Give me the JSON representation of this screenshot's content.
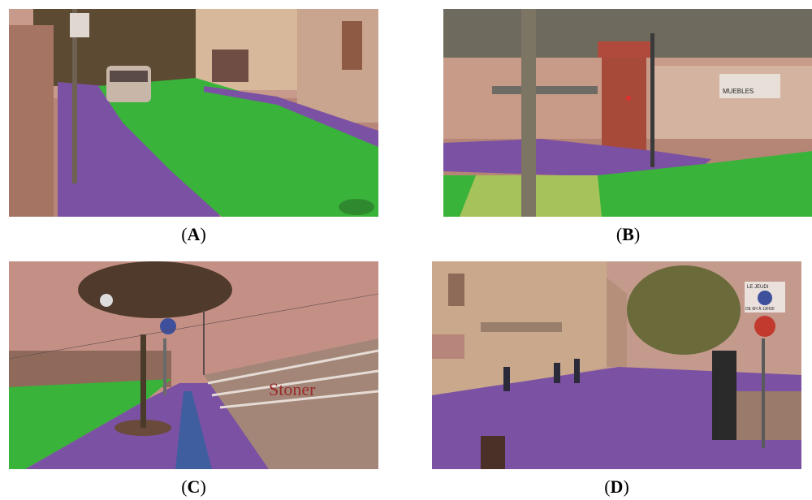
{
  "figure": {
    "panels": [
      {
        "id": "A",
        "caption_open": "(",
        "label": "A",
        "caption_close": ")",
        "scene": "urban street with segmented road and sidewalk"
      },
      {
        "id": "B",
        "caption_open": "(",
        "label": "B",
        "caption_close": ")",
        "scene": "intersection under elevated structure"
      },
      {
        "id": "C",
        "caption_open": "(",
        "label": "C",
        "caption_close": ")",
        "scene": "sidewalk with tree and railing"
      },
      {
        "id": "D",
        "caption_open": "(",
        "label": "D",
        "caption_close": ")",
        "scene": "pedestrian plaza with buildings"
      }
    ],
    "signs": {
      "shop_sign_b": "MUEBLES",
      "parking_sign_d": "LE JEUDI",
      "parking_sign_d_hours": "DE 6H À 13H30",
      "railing_text_c": "Stoner"
    },
    "colors": {
      "road_overlay": "#3bbf3b",
      "sidewalk_overlay": "#7d4fa8",
      "background_overlay": "#c48a84",
      "crosswalk_overlay": "#a9c45a"
    }
  }
}
